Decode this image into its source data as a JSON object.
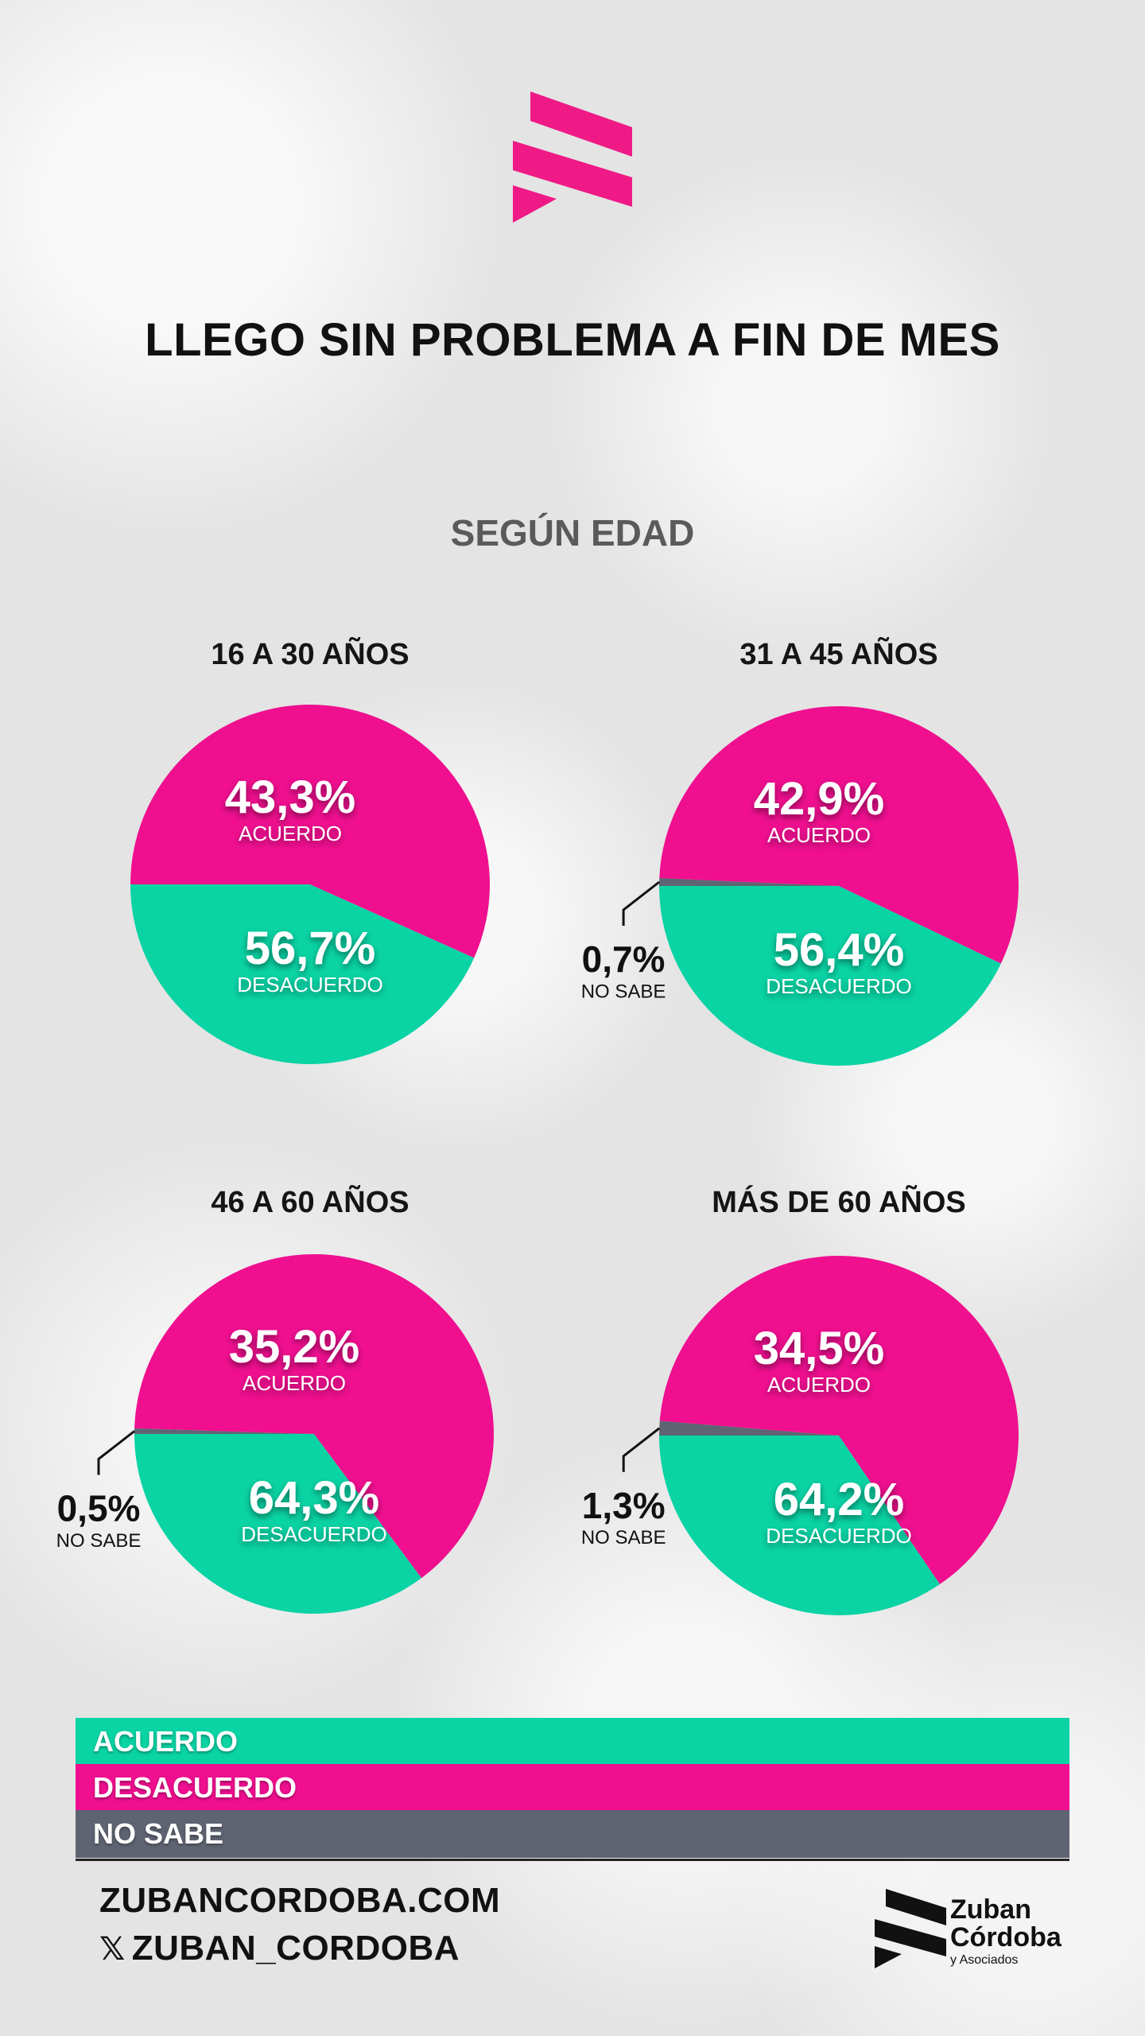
{
  "title": "LLEGO SIN PROBLEMA A FIN DE MES",
  "subtitle": "SEGÚN EDAD",
  "colors": {
    "acuerdo": "#0ad3a4",
    "desacuerdo": "#ef0f8f",
    "no_sabe": "#5f6472"
  },
  "chart_data": [
    {
      "type": "pie",
      "title": "16 A 30 AÑOS",
      "slices": [
        {
          "label": "ACUERDO",
          "value": 43.3,
          "display": "43,3%"
        },
        {
          "label": "DESACUERDO",
          "value": 56.7,
          "display": "56,7%"
        }
      ]
    },
    {
      "type": "pie",
      "title": "31 A 45 AÑOS",
      "slices": [
        {
          "label": "ACUERDO",
          "value": 42.9,
          "display": "42,9%"
        },
        {
          "label": "DESACUERDO",
          "value": 56.4,
          "display": "56,4%"
        },
        {
          "label": "NO SABE",
          "value": 0.7,
          "display": "0,7%"
        }
      ]
    },
    {
      "type": "pie",
      "title": "46 A 60 AÑOS",
      "slices": [
        {
          "label": "ACUERDO",
          "value": 35.2,
          "display": "35,2%"
        },
        {
          "label": "DESACUERDO",
          "value": 64.3,
          "display": "64,3%"
        },
        {
          "label": "NO SABE",
          "value": 0.5,
          "display": "0,5%"
        }
      ]
    },
    {
      "type": "pie",
      "title": "MÁS DE 60 AÑOS",
      "slices": [
        {
          "label": "ACUERDO",
          "value": 34.5,
          "display": "34,5%"
        },
        {
          "label": "DESACUERDO",
          "value": 64.2,
          "display": "64,2%"
        },
        {
          "label": "NO SABE",
          "value": 1.3,
          "display": "1,3%"
        }
      ]
    }
  ],
  "legend": {
    "items": [
      {
        "label": "ACUERDO",
        "color": "#0ad3a4"
      },
      {
        "label": "DESACUERDO",
        "color": "#ef0f8f"
      },
      {
        "label": "NO SABE",
        "color": "#5f6472"
      }
    ]
  },
  "footer": {
    "website": "ZUBANCORDOBA.COM",
    "social_icon": "x-icon",
    "social_handle": "ZUBAN_CORDOBA",
    "brand_line1": "Zuban",
    "brand_line2": "Córdoba",
    "brand_line3": "y Asociados"
  }
}
